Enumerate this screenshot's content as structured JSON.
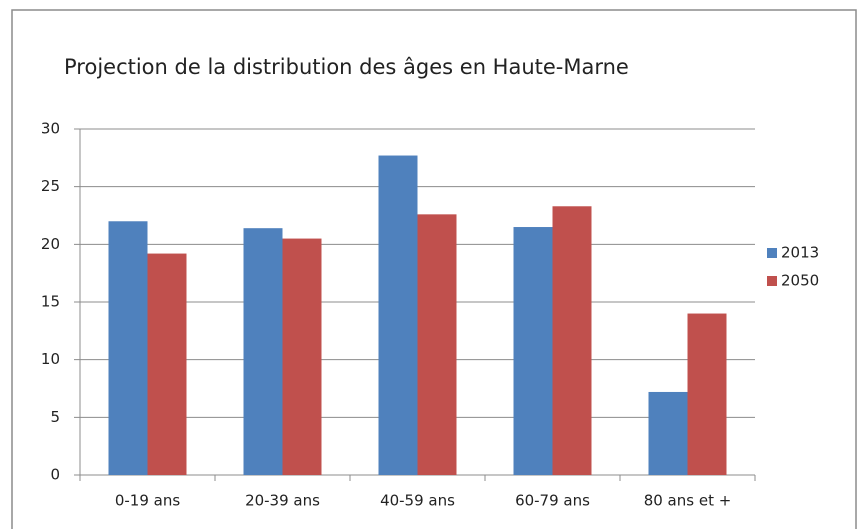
{
  "chart_data": {
    "type": "bar",
    "title": "Projection de la distribution des âges en Haute-Marne",
    "categories": [
      "0-19 ans",
      "20-39 ans",
      "40-59 ans",
      "60-79 ans",
      "80 ans et +"
    ],
    "series": [
      {
        "name": "2013",
        "color": "#4f81bd",
        "values": [
          22.0,
          21.4,
          27.7,
          21.5,
          7.2
        ]
      },
      {
        "name": "2050",
        "color": "#c0504d",
        "values": [
          19.2,
          20.5,
          22.6,
          23.3,
          14.0
        ]
      }
    ],
    "ylim": [
      0,
      30
    ],
    "yticks": [
      0,
      5,
      10,
      15,
      20,
      25,
      30
    ],
    "grid": true,
    "legend": "right"
  }
}
